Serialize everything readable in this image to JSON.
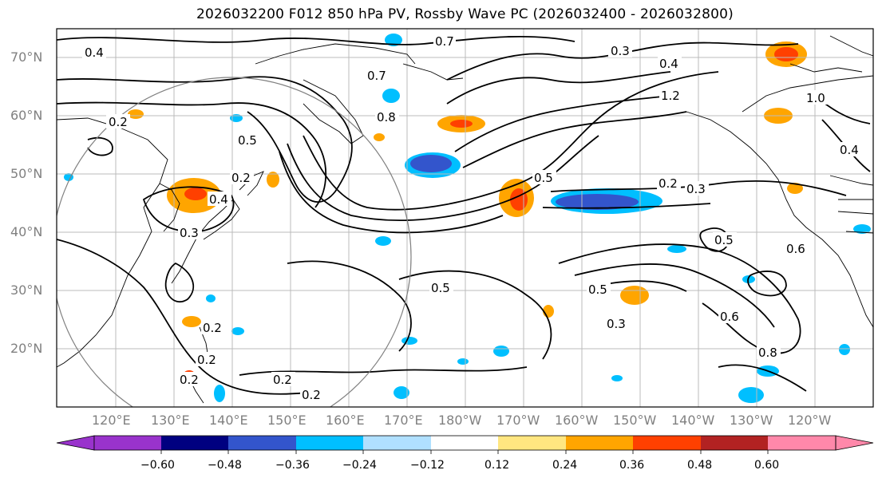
{
  "figure": {
    "title": "2026032200 F012 850 hPa PV, Rossby Wave PC (2026032400 - 2026032800)"
  },
  "map": {
    "lat_labels": [
      "70°N",
      "60°N",
      "50°N",
      "40°N",
      "30°N",
      "20°N"
    ],
    "lon_labels": [
      "120°E",
      "130°E",
      "140°E",
      "150°E",
      "160°E",
      "170°E",
      "180°W",
      "170°W",
      "160°W",
      "150°W",
      "140°W",
      "130°W",
      "120°W"
    ],
    "contour_labels": [
      "0.4",
      "0.7",
      "0.7",
      "0.3",
      "0.4",
      "1.2",
      "1.0",
      "0.2",
      "0.5",
      "0.8",
      "0.2",
      "0.4",
      "0.3",
      "0.2",
      "0.3",
      "0.5",
      "0.2",
      "0.2",
      "0.2",
      "0.2",
      "0.2",
      "0.5",
      "0.5",
      "0.6",
      "0.8",
      "0.3",
      "0.5",
      "0.6",
      "0.4"
    ],
    "colors": {
      "land_outline": "#000000",
      "gridline": "#bbbbbb",
      "circle": "#808080"
    }
  },
  "colorbar": {
    "ticks": [
      "−0.60",
      "−0.48",
      "−0.36",
      "−0.24",
      "−0.12",
      "0.12",
      "0.24",
      "0.36",
      "0.48",
      "0.60"
    ],
    "colors": [
      "#9933cc",
      "#000080",
      "#3355cc",
      "#00bfff",
      "#b0e0ff",
      "#ffffff",
      "#ffe680",
      "#ffa500",
      "#ff4000",
      "#b22222",
      "#ff88aa"
    ]
  }
}
